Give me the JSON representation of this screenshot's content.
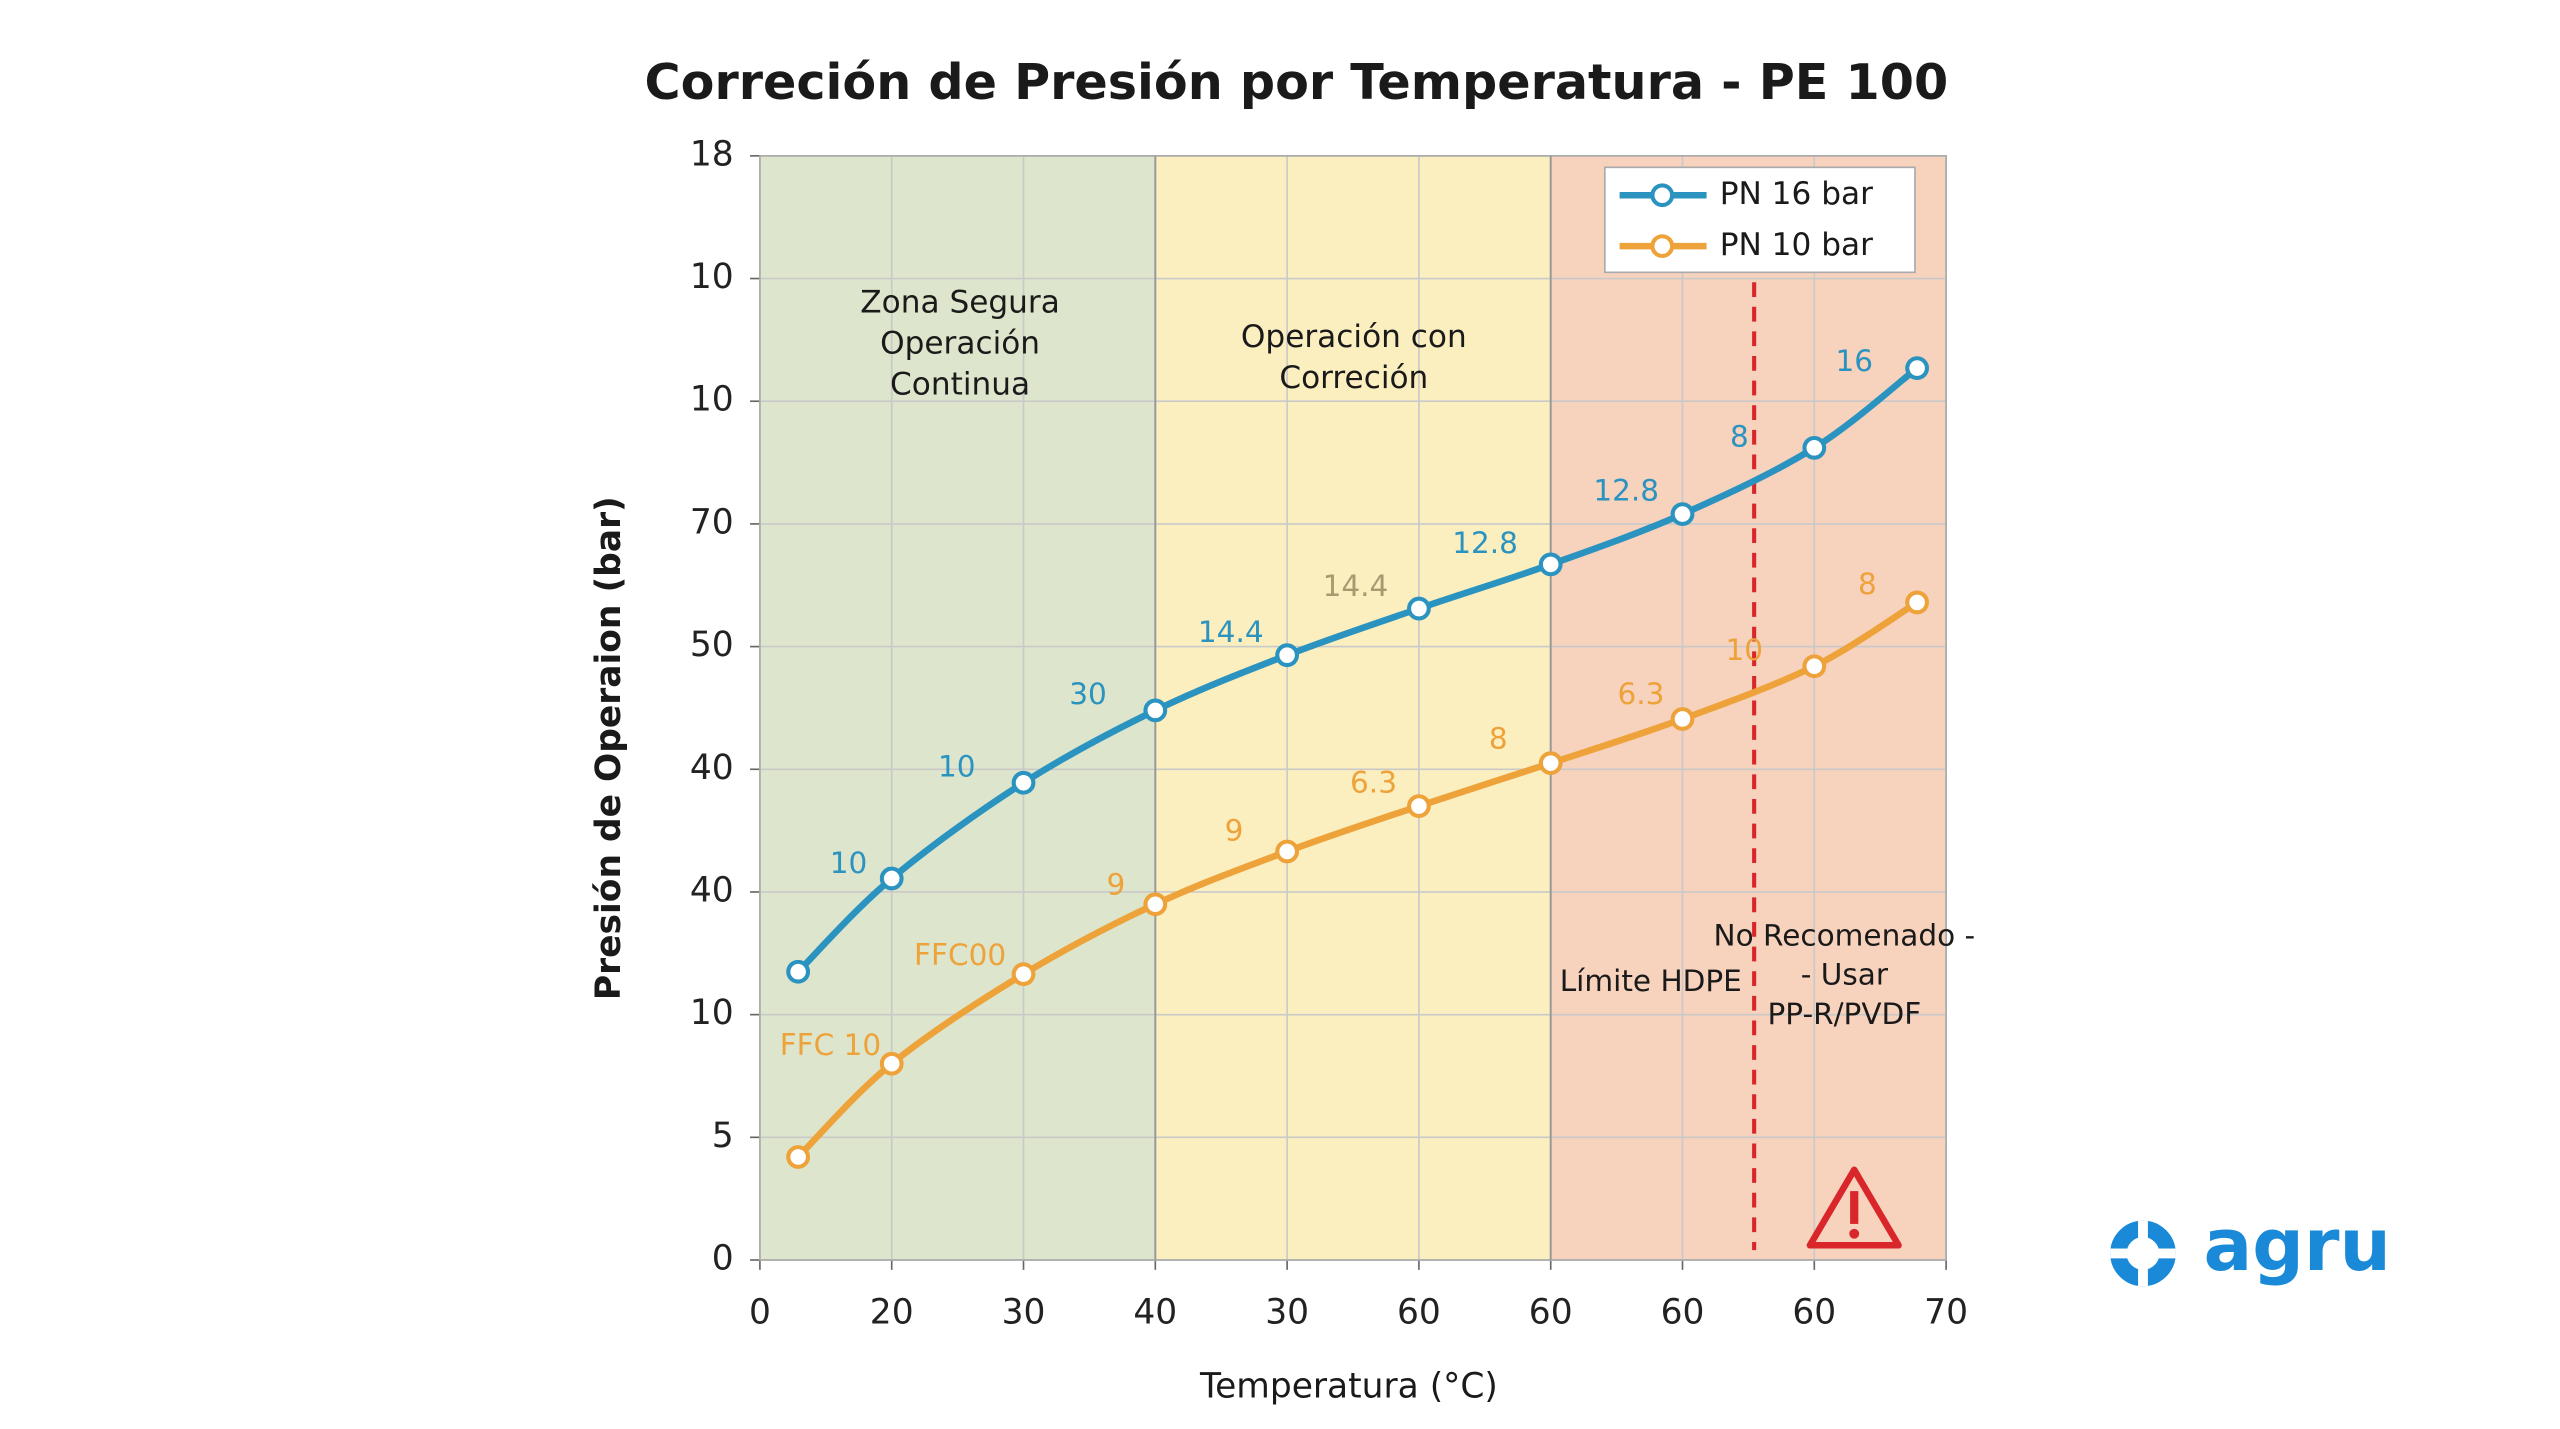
{
  "chart_data": {
    "type": "line",
    "title": "Correción de Presión por Temperatura - PE 100",
    "xlabel": "Temperatura (°C)",
    "ylabel": "Presión de Operaion (bar)",
    "x": [
      0.29,
      1,
      2,
      3,
      4,
      5,
      6,
      7,
      8,
      8.78
    ],
    "series": [
      {
        "name": "PN 16 bar",
        "color": "#2a93c0",
        "values": [
          2.35,
          3.11,
          3.89,
          4.48,
          4.93,
          5.31,
          5.67,
          6.08,
          6.62,
          7.27
        ]
      },
      {
        "name": "PN 10 bar",
        "color": "#eea23a",
        "values": [
          0.84,
          1.6,
          2.33,
          2.9,
          3.33,
          3.7,
          4.05,
          4.41,
          4.84,
          5.36
        ]
      }
    ],
    "xlim": [
      0,
      9
    ],
    "xticks": [
      0,
      {
        "value": 1,
        "label": "20"
      },
      {
        "value": 2,
        "label": "30"
      },
      {
        "value": 3,
        "label": "40"
      },
      {
        "value": 4,
        "label": "30"
      },
      {
        "value": 5,
        "label": "60"
      },
      {
        "value": 6,
        "label": "60"
      },
      {
        "value": 7,
        "label": "60"
      },
      {
        "value": 8,
        "label": "60"
      },
      {
        "value": 9,
        "label": "70"
      }
    ],
    "ylim": [
      0,
      9
    ],
    "yticks": [
      0,
      {
        "value": 1,
        "label": "5"
      },
      {
        "value": 2,
        "label": "10"
      },
      {
        "value": 3,
        "label": "40"
      },
      {
        "value": 4,
        "label": "40"
      },
      {
        "value": 5,
        "label": "50"
      },
      {
        "value": 6,
        "label": "70"
      },
      {
        "value": 7,
        "label": "10"
      },
      {
        "value": 8,
        "label": "10"
      },
      {
        "value": 9,
        "label": "18"
      }
    ],
    "grid": true,
    "legend": "upper right",
    "annotations": [
      "10",
      "10",
      "30",
      "14.4",
      "12.8",
      "12.8",
      "8",
      "16",
      "FFC 10",
      "FFC00",
      "9",
      "9",
      "6.3",
      "8",
      "6.3",
      "10",
      "8",
      "14.4"
    ],
    "zone_labels": [
      [
        "Zona Segura",
        "Operación",
        "Continua"
      ],
      [
        "Operación con",
        "Correción"
      ]
    ],
    "limit_label": "Límite HDPE",
    "warning_label": [
      "No Recomenado -",
      "- Usar",
      "PP-R/PVDF"
    ],
    "logo": "agru"
  }
}
